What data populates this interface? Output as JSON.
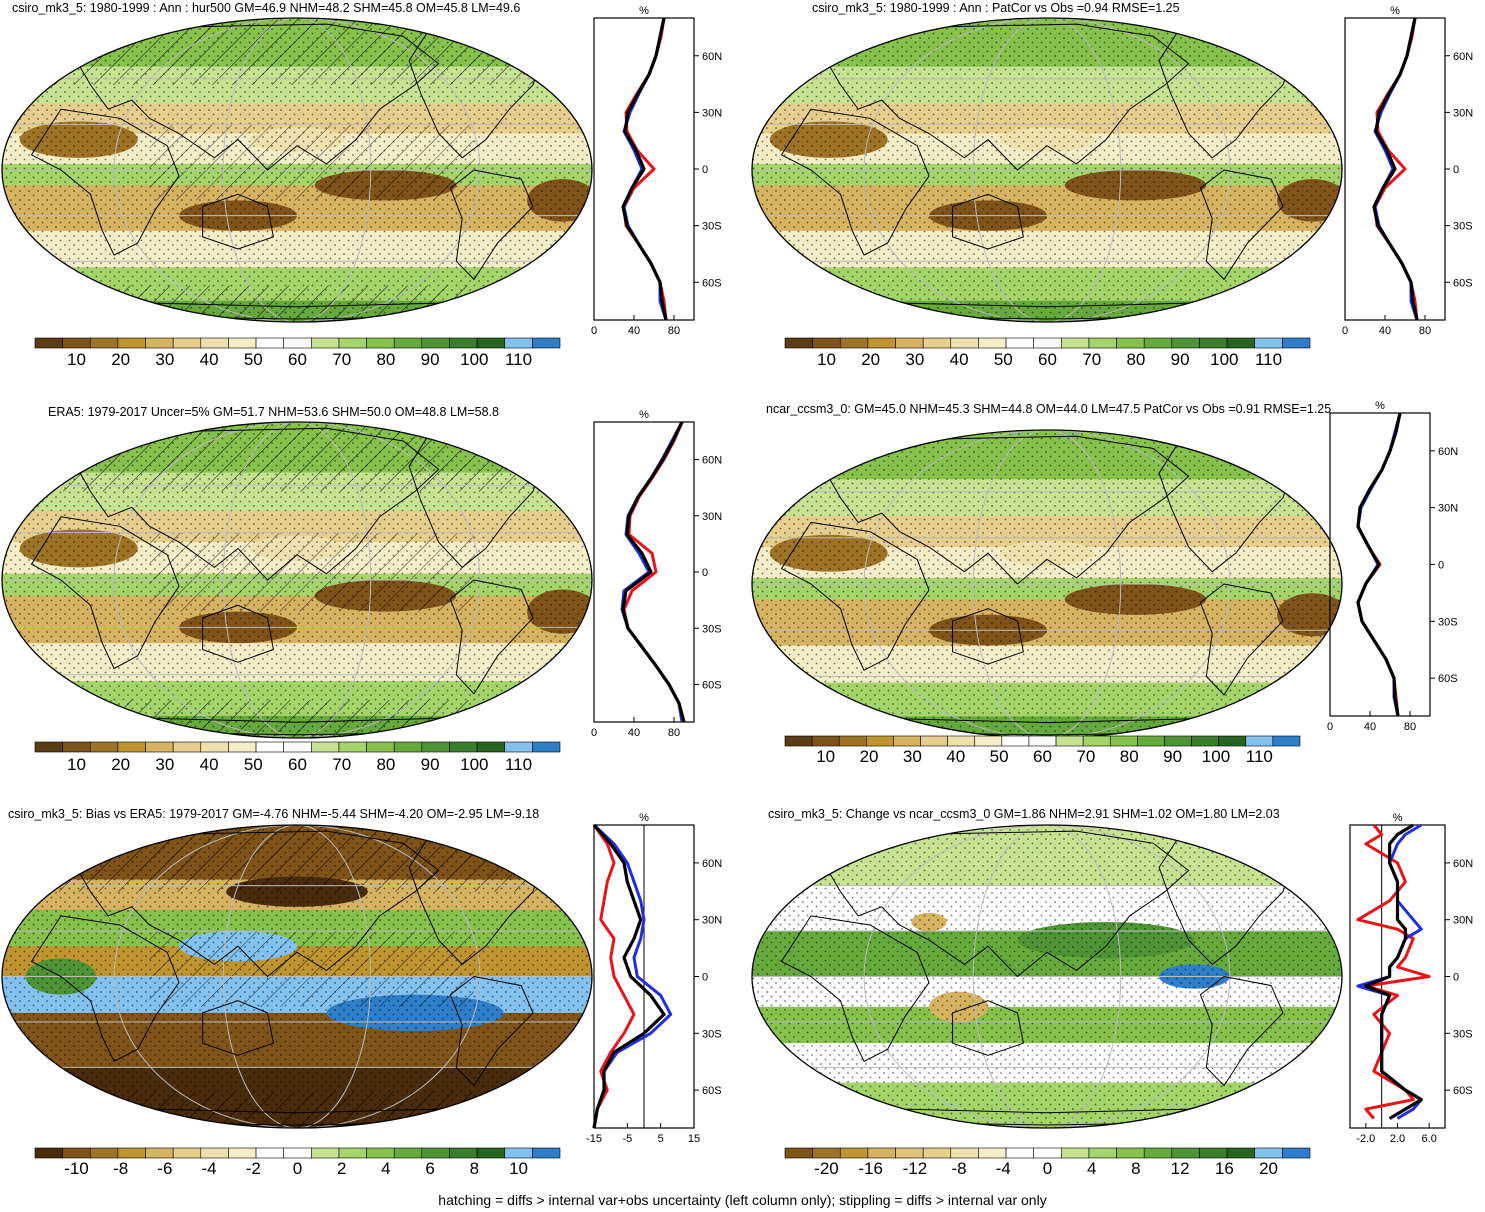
{
  "footer": "hatching = diffs > internal var+obs uncertainty (left column only); stippling = diffs > internal var only",
  "colors": {
    "profile_red": "#e8141a",
    "profile_blue": "#1f2fe0",
    "profile_black": "#000000",
    "coast": "#000000"
  },
  "chart_data": [
    {
      "type": "heatmap",
      "title": "csiro_mk3_5: 1980-1999 : Ann : hur500 GM=46.9 NHM=48.2 SHM=45.8 OM=45.8 LM=49.6",
      "palette": "humidity",
      "colorbar_ticks": [
        "10",
        "20",
        "30",
        "40",
        "50",
        "60",
        "70",
        "80",
        "90",
        "100",
        "110"
      ],
      "hatching": true,
      "profile": {
        "unit": "%",
        "lat_ticks": [
          "60N",
          "30N",
          "0",
          "30S",
          "60S"
        ],
        "x_ticks": [
          "0",
          "40",
          "80"
        ],
        "xlim": [
          0,
          100
        ],
        "lat": [
          80,
          70,
          60,
          50,
          40,
          30,
          20,
          10,
          0,
          -10,
          -20,
          -30,
          -40,
          -50,
          -60,
          -70,
          -80
        ],
        "series": [
          {
            "color": "red",
            "values": [
              70,
              67,
              62,
              55,
              43,
              32,
              33,
              43,
              60,
              40,
              30,
              32,
              45,
              57,
              66,
              70,
              72
            ]
          },
          {
            "color": "blue",
            "values": [
              70,
              66,
              62,
              55,
              45,
              36,
              30,
              40,
              48,
              38,
              30,
              34,
              45,
              57,
              66,
              66,
              72
            ]
          },
          {
            "color": "black",
            "values": [
              70,
              66,
              62,
              55,
              44,
              34,
              31,
              42,
              50,
              38,
              29,
              33,
              45,
              57,
              66,
              68,
              72
            ]
          }
        ]
      }
    },
    {
      "type": "heatmap",
      "title": "csiro_mk3_5: 1980-1999 : Ann : PatCor vs Obs =0.94 RMSE=1.25",
      "palette": "humidity",
      "colorbar_ticks": [
        "10",
        "20",
        "30",
        "40",
        "50",
        "60",
        "70",
        "80",
        "90",
        "100",
        "110"
      ],
      "hatching": false,
      "profile": {
        "unit": "%",
        "lat_ticks": [
          "60N",
          "30N",
          "0",
          "30S",
          "60S"
        ],
        "x_ticks": [
          "0",
          "40",
          "80"
        ],
        "xlim": [
          0,
          100
        ],
        "lat": [
          80,
          70,
          60,
          50,
          40,
          30,
          20,
          10,
          0,
          -10,
          -20,
          -30,
          -40,
          -50,
          -60,
          -70,
          -80
        ],
        "series": [
          {
            "color": "red",
            "values": [
              70,
              67,
              62,
              55,
              43,
              32,
              33,
              43,
              60,
              40,
              30,
              32,
              45,
              57,
              66,
              70,
              72
            ]
          },
          {
            "color": "blue",
            "values": [
              70,
              66,
              62,
              55,
              45,
              36,
              30,
              40,
              48,
              38,
              30,
              34,
              45,
              57,
              66,
              66,
              72
            ]
          },
          {
            "color": "black",
            "values": [
              70,
              66,
              62,
              55,
              44,
              34,
              31,
              42,
              50,
              38,
              29,
              33,
              45,
              57,
              66,
              68,
              72
            ]
          }
        ]
      }
    },
    {
      "type": "heatmap",
      "title": "ERA5: 1979-2017 Uncer=5% GM=51.7 NHM=53.6 SHM=50.0 OM=48.8 LM=58.8",
      "palette": "humidity",
      "colorbar_ticks": [
        "10",
        "20",
        "30",
        "40",
        "50",
        "60",
        "70",
        "80",
        "90",
        "100",
        "110"
      ],
      "hatching": true,
      "profile": {
        "unit": "%",
        "lat_ticks": [
          "60N",
          "30N",
          "0",
          "30S",
          "60S"
        ],
        "x_ticks": [
          "0",
          "40",
          "80"
        ],
        "xlim": [
          0,
          100
        ],
        "lat": [
          80,
          70,
          60,
          50,
          40,
          30,
          20,
          10,
          0,
          -10,
          -20,
          -30,
          -40,
          -50,
          -60,
          -70,
          -80
        ],
        "series": [
          {
            "color": "red",
            "values": [
              88,
              80,
              70,
              58,
              45,
              36,
              35,
              58,
              62,
              38,
              30,
              34,
              48,
              62,
              75,
              85,
              90
            ]
          },
          {
            "color": "blue",
            "values": [
              88,
              78,
              68,
              57,
              44,
              34,
              32,
              45,
              55,
              30,
              28,
              34,
              48,
              62,
              75,
              85,
              88
            ]
          },
          {
            "color": "black",
            "values": [
              88,
              79,
              69,
              57,
              44,
              35,
              33,
              48,
              57,
              32,
              29,
              34,
              48,
              62,
              75,
              85,
              90
            ]
          }
        ]
      }
    },
    {
      "type": "heatmap",
      "title": "ncar_ccsm3_0: GM=45.0 NHM=45.3 SHM=44.8 OM=44.0 LM=47.5 PatCor vs Obs =0.91 RMSE=1.25",
      "palette": "humidity",
      "colorbar_ticks": [
        "10",
        "20",
        "30",
        "40",
        "50",
        "60",
        "70",
        "80",
        "90",
        "100",
        "110"
      ],
      "hatching": false,
      "profile": {
        "unit": "%",
        "lat_ticks": [
          "60N",
          "30N",
          "0",
          "30S",
          "60S"
        ],
        "x_ticks": [
          "0",
          "40",
          "80"
        ],
        "xlim": [
          0,
          100
        ],
        "lat": [
          80,
          70,
          60,
          50,
          40,
          30,
          20,
          10,
          0,
          -10,
          -20,
          -30,
          -40,
          -50,
          -60,
          -70,
          -80
        ],
        "series": [
          {
            "color": "red",
            "values": [
              70,
              66,
              60,
              52,
              40,
              30,
              28,
              38,
              50,
              36,
              28,
              32,
              44,
              56,
              64,
              66,
              68
            ]
          },
          {
            "color": "blue",
            "values": [
              70,
              65,
              60,
              52,
              41,
              31,
              28,
              38,
              48,
              36,
              28,
              32,
              44,
              56,
              64,
              64,
              68
            ]
          },
          {
            "color": "black",
            "values": [
              70,
              66,
              60,
              52,
              40,
              30,
              28,
              38,
              49,
              36,
              28,
              32,
              44,
              56,
              64,
              65,
              68
            ]
          }
        ]
      }
    },
    {
      "type": "heatmap",
      "title": "csiro_mk3_5: Bias vs ERA5: 1979-2017 GM=-4.76 NHM=-5.44 SHM=-4.20 OM=-2.95 LM=-9.18",
      "palette": "bias",
      "colorbar_ticks": [
        "-10",
        "-8",
        "-6",
        "-4",
        "-2",
        "0",
        "2",
        "4",
        "6",
        "8",
        "10"
      ],
      "hatching": true,
      "profile": {
        "unit": "%",
        "lat_ticks": [
          "60N",
          "30N",
          "0",
          "30S",
          "60S"
        ],
        "x_ticks": [
          "-15",
          "-5",
          "5",
          "15"
        ],
        "xlim": [
          -15,
          15
        ],
        "zero_line": 0,
        "lat": [
          80,
          70,
          60,
          50,
          40,
          30,
          20,
          10,
          0,
          -10,
          -20,
          -30,
          -40,
          -50,
          -60,
          -70,
          -80
        ],
        "series": [
          {
            "color": "red",
            "values": [
              -15,
              -11,
              -9,
              -11,
              -12,
              -13,
              -9,
              -10,
              -9,
              -6,
              -3,
              -6,
              -10,
              -13,
              -11,
              -14,
              -15
            ]
          },
          {
            "color": "blue",
            "values": [
              -15,
              -9,
              -5,
              -3,
              -1,
              0,
              -1,
              -3,
              -2,
              5,
              8,
              2,
              -8,
              -12,
              -12,
              -14,
              -15
            ]
          },
          {
            "color": "black",
            "values": [
              -15,
              -10,
              -6,
              -5,
              -3,
              -1,
              -3,
              -6,
              -4,
              2,
              6,
              0,
              -9,
              -12,
              -12,
              -14,
              -15
            ]
          }
        ]
      }
    },
    {
      "type": "heatmap",
      "title": "csiro_mk3_5: Change vs ncar_ccsm3_0 GM=1.86 NHM=2.91 SHM=1.02 OM=1.80 LM=2.03",
      "palette": "change",
      "colorbar_ticks": [
        "-20",
        "-16",
        "-12",
        "-8",
        "-4",
        "0",
        "4",
        "8",
        "12",
        "16",
        "20"
      ],
      "hatching": false,
      "profile": {
        "unit": "%",
        "lat_ticks": [
          "60N",
          "30N",
          "0",
          "30S",
          "60S"
        ],
        "x_ticks": [
          "-2.0",
          "2.0",
          "6.0"
        ],
        "xlim": [
          -4,
          8
        ],
        "zero_line": 0,
        "lat": [
          80,
          75,
          70,
          60,
          50,
          40,
          30,
          25,
          20,
          10,
          5,
          0,
          -5,
          -10,
          -20,
          -30,
          -40,
          -50,
          -60,
          -65,
          -70,
          -75
        ],
        "series": [
          {
            "color": "red",
            "values": [
              -1,
              0,
              -2,
              2,
              3,
              1,
              -3,
              2,
              4,
              3,
              2,
              6,
              -2,
              2,
              -1,
              1,
              0,
              -1,
              3,
              4,
              -2,
              -1
            ]
          },
          {
            "color": "blue",
            "values": [
              5,
              3,
              2,
              1,
              2,
              2,
              4,
              5,
              3,
              2,
              1,
              1,
              -3,
              1,
              0,
              0,
              0,
              0,
              3,
              5,
              4,
              2
            ]
          },
          {
            "color": "black",
            "values": [
              4,
              2,
              1,
              1,
              2,
              2,
              2,
              3,
              3,
              2,
              1,
              1,
              -2,
              1,
              0,
              0,
              0,
              0,
              3,
              5,
              3,
              1
            ]
          }
        ]
      }
    }
  ]
}
